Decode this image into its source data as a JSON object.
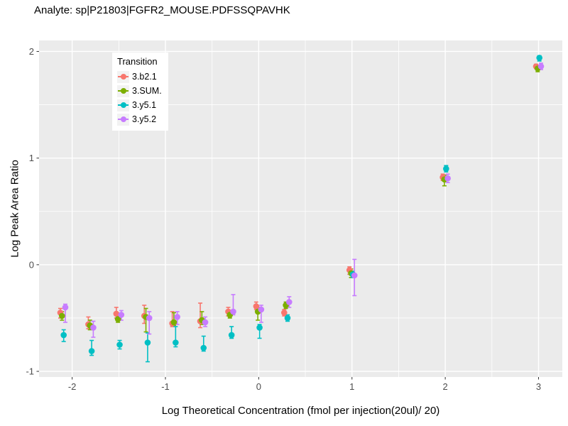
{
  "chart_data": {
    "type": "scatter",
    "mark": "pointrange",
    "title": "Analyte: sp|P21803|FGFR2_MOUSE.PDFSSQPAVHK",
    "xlabel": "Log Theoretical Concentration (fmol per injection(20ul)/ 20)",
    "ylabel": "Log Peak Area Ratio",
    "xlim": [
      -2.355,
      3.255
    ],
    "ylim": [
      -1.053,
      2.103
    ],
    "grid": true,
    "x_ticks": {
      "values": [
        -2,
        -1,
        0,
        1,
        2,
        3
      ],
      "labels": [
        "-2",
        "-1",
        "0",
        "1",
        "2",
        "3"
      ]
    },
    "y_ticks": {
      "values": [
        -1,
        0,
        1,
        2
      ],
      "labels": [
        "-1",
        "0",
        "1",
        "2"
      ]
    },
    "x_minor": [
      -1.5,
      -0.5,
      0.5,
      1.5,
      2.5
    ],
    "y_minor": [
      -0.5,
      0.5,
      1.5
    ],
    "styles": {
      "panel_bg": "#EBEBEB",
      "grid_color": "#FFFFFF",
      "tick_label_color": "#4D4D4D",
      "tick_mark_color": "#333333",
      "text_color": "#000000",
      "legend_key_bg": "#F2F2F2"
    },
    "legend": {
      "title": "Transition",
      "position": "inside-top-left",
      "entries": [
        {
          "label": "3.b2.1",
          "color": "#F8766D"
        },
        {
          "label": "3.SUM.",
          "color": "#7CAE00"
        },
        {
          "label": "3.y5.1",
          "color": "#00BFC4"
        },
        {
          "label": "3.y5.2",
          "color": "#C77CFF"
        }
      ]
    },
    "x": [
      -2.1,
      -1.8,
      -1.5,
      -1.2,
      -0.9,
      -0.6,
      -0.3,
      0,
      0.3,
      1,
      2,
      3
    ],
    "series": [
      {
        "name": "3.b2.1",
        "color": "#F8766D",
        "y": [
          -0.45,
          -0.56,
          -0.46,
          -0.48,
          -0.55,
          -0.53,
          -0.44,
          -0.39,
          -0.45,
          -0.05,
          0.82,
          1.86
        ],
        "lo": [
          -0.5,
          -0.6,
          -0.5,
          -0.55,
          -0.58,
          -0.59,
          -0.48,
          -0.42,
          -0.48,
          -0.09,
          0.79,
          1.84
        ],
        "hi": [
          -0.41,
          -0.49,
          -0.4,
          -0.38,
          -0.44,
          -0.36,
          -0.4,
          -0.35,
          -0.42,
          -0.02,
          0.85,
          1.88
        ]
      },
      {
        "name": "3.SUM.",
        "color": "#7CAE00",
        "y": [
          -0.48,
          -0.57,
          -0.51,
          -0.49,
          -0.54,
          -0.52,
          -0.47,
          -0.44,
          -0.38,
          -0.08,
          0.8,
          1.84
        ],
        "lo": [
          -0.52,
          -0.61,
          -0.54,
          -0.63,
          -0.57,
          -0.56,
          -0.5,
          -0.52,
          -0.41,
          -0.12,
          0.74,
          1.81
        ],
        "hi": [
          -0.44,
          -0.52,
          -0.47,
          -0.41,
          -0.45,
          -0.44,
          -0.43,
          -0.4,
          -0.35,
          -0.04,
          0.84,
          1.87
        ]
      },
      {
        "name": "3.y5.1",
        "color": "#00BFC4",
        "y": [
          -0.66,
          -0.81,
          -0.75,
          -0.73,
          -0.73,
          -0.78,
          -0.66,
          -0.59,
          -0.5,
          -0.09,
          0.9,
          1.94
        ],
        "lo": [
          -0.72,
          -0.85,
          -0.79,
          -0.91,
          -0.77,
          -0.81,
          -0.69,
          -0.69,
          -0.53,
          -0.12,
          0.87,
          1.91
        ],
        "hi": [
          -0.61,
          -0.71,
          -0.71,
          -0.64,
          -0.58,
          -0.67,
          -0.58,
          -0.56,
          -0.47,
          -0.06,
          0.93,
          1.96
        ]
      },
      {
        "name": "3.y5.2",
        "color": "#C77CFF",
        "y": [
          -0.4,
          -0.59,
          -0.47,
          -0.5,
          -0.49,
          -0.54,
          -0.44,
          -0.42,
          -0.35,
          -0.1,
          0.81,
          1.86
        ],
        "lo": [
          -0.54,
          -0.68,
          -0.52,
          -0.65,
          -0.56,
          -0.58,
          -0.47,
          -0.54,
          -0.4,
          -0.29,
          0.77,
          1.83
        ],
        "hi": [
          -0.37,
          -0.53,
          -0.43,
          -0.44,
          -0.44,
          -0.49,
          -0.28,
          -0.38,
          -0.3,
          0.05,
          0.85,
          1.89
        ]
      }
    ]
  }
}
